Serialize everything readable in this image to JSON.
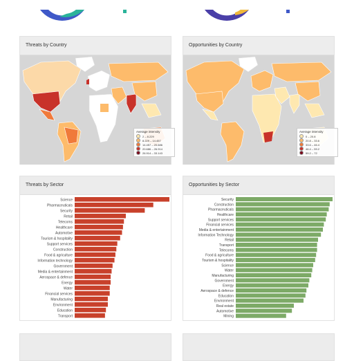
{
  "threats_map": {
    "title": "Threats by Country",
    "legend_title": "Average intensity",
    "legend": [
      {
        "label": "2 – 8.229",
        "color": "#fee8b0"
      },
      {
        "label": "8.229 – 14.457",
        "color": "#fdbb6b"
      },
      {
        "label": "14.457 – 20.686",
        "color": "#f07a3a"
      },
      {
        "label": "20.686 – 26.914",
        "color": "#c8322a"
      },
      {
        "label": "26.914 – 33.143",
        "color": "#7a0c1e"
      }
    ]
  },
  "opportunities_map": {
    "title": "Opportunities by Country",
    "legend_title": "Average intensity",
    "legend": [
      {
        "label": "0 – 20.8",
        "color": "#fee8b0"
      },
      {
        "label": "20.8 – 33.6",
        "color": "#fdbb6b"
      },
      {
        "label": "33.6 – 46.4",
        "color": "#f07a3a"
      },
      {
        "label": "46.4 – 59.2",
        "color": "#c8322a"
      },
      {
        "label": "59.2 – 72",
        "color": "#7a0c1e"
      }
    ]
  },
  "threats_sector": {
    "title": "Threats by Sector"
  },
  "opportunities_sector": {
    "title": "Opportunities by Sector"
  },
  "colors": {
    "threat_bar": "#c8412b",
    "opportunity_bar": "#7daa67",
    "ocean": "#d4d4d4",
    "land": "#ffffff"
  },
  "chart_data": [
    {
      "type": "bar",
      "orientation": "horizontal",
      "title": "Threats by Sector",
      "categories": [
        "Science",
        "Pharmaceuticals",
        "Security",
        "Retail",
        "Telecoms",
        "Healthcare",
        "Automotive",
        "Tourism & hospitality",
        "Support services",
        "Construction",
        "Food & agriculture",
        "Information technology",
        "Government",
        "Media & entertainment",
        "Aerospace & defence",
        "Energy",
        "Water",
        "Financial services",
        "Manufacturing",
        "Environment",
        "Education",
        "Transport"
      ],
      "values": [
        100,
        83,
        74,
        54,
        52,
        51,
        50,
        48,
        45,
        44,
        43,
        42,
        40,
        39,
        38,
        38,
        37,
        37,
        35,
        35,
        33,
        32
      ],
      "color": "#c8412b"
    },
    {
      "type": "bar",
      "orientation": "horizontal",
      "title": "Opportunities by Sector",
      "categories": [
        "Security",
        "Construction",
        "Pharmaceuticals",
        "Healthcare",
        "Support services",
        "Financial services",
        "Media & entertainment",
        "Information Technology",
        "Retail",
        "Transport",
        "Telecoms",
        "Food & agriculture",
        "Tourism & hospitality",
        "Science",
        "Water",
        "Manufacturing",
        "Government",
        "Energy",
        "Aerospace & defence",
        "Education",
        "Environment",
        "Real estate",
        "Automotive",
        "Mining"
      ],
      "values": [
        100,
        97,
        96,
        94,
        93,
        91,
        90,
        88,
        85,
        84,
        84,
        83,
        82,
        80,
        79,
        78,
        76,
        75,
        73,
        72,
        70,
        60,
        58,
        52
      ],
      "color": "#7daa67"
    }
  ]
}
